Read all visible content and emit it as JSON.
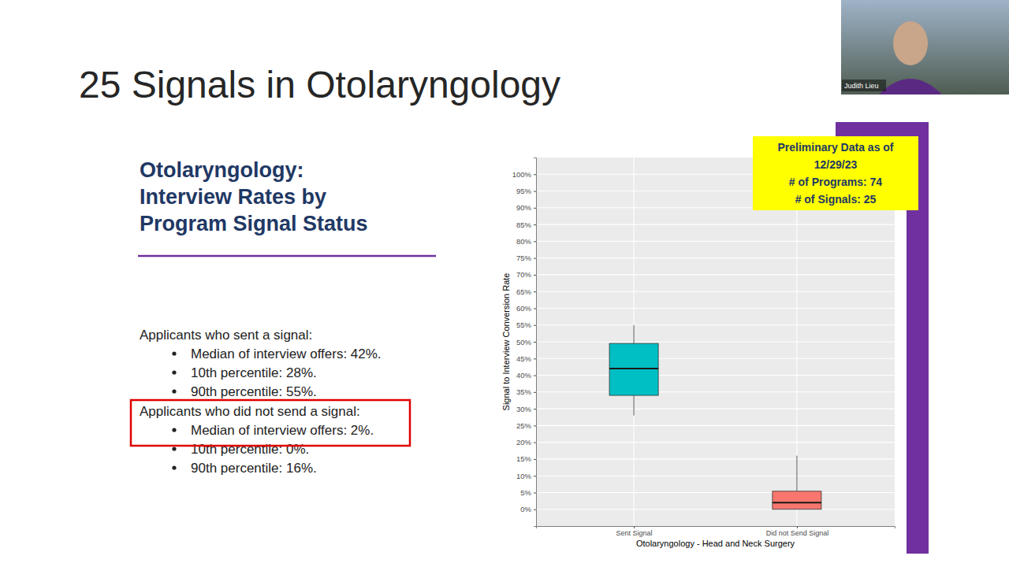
{
  "slide": {
    "title": "25 Signals in Otolaryngology",
    "heading": [
      "Otolaryngology:",
      "Interview Rates by",
      "Program Signal Status"
    ],
    "groups": [
      {
        "label": "Applicants who sent a signal:",
        "items": [
          "Median of interview offers: 42%.",
          "10th percentile: 28%.",
          "90th percentile: 55%."
        ]
      },
      {
        "label": "Applicants who did not send a signal:",
        "items": [
          "Median of interview offers: 2%.",
          "10th percentile: 0%.",
          "90th percentile: 16%."
        ]
      }
    ],
    "presenter": "Judith Lieu"
  },
  "chart_data": {
    "type": "box",
    "x_label": "Otolaryngology - Head and Neck Surgery",
    "y_label": "Signal to Interview Conversion Rate",
    "categories": [
      "Sent Signal",
      "Did not Send Signal"
    ],
    "low": [
      28,
      0
    ],
    "q1": [
      34,
      0
    ],
    "median": [
      42,
      2
    ],
    "q3": [
      49.5,
      5.4
    ],
    "high": [
      55,
      16
    ],
    "colors": [
      "#00bfc4",
      "#f8766d"
    ],
    "ylim": [
      -5,
      105
    ],
    "yticks": [
      {
        "value": 0,
        "label": "0%"
      },
      {
        "value": 5,
        "label": "5%"
      },
      {
        "value": 10,
        "label": "10%"
      },
      {
        "value": 15,
        "label": "15%"
      },
      {
        "value": 20,
        "label": "20%"
      },
      {
        "value": 25,
        "label": "25%"
      },
      {
        "value": 30,
        "label": "30%"
      },
      {
        "value": 35,
        "label": "35%"
      },
      {
        "value": 40,
        "label": "40%"
      },
      {
        "value": 45,
        "label": "45%"
      },
      {
        "value": 50,
        "label": "50%"
      },
      {
        "value": 55,
        "label": "55%"
      },
      {
        "value": 60,
        "label": "60%"
      },
      {
        "value": 65,
        "label": "65%"
      },
      {
        "value": 70,
        "label": "70%"
      },
      {
        "value": 75,
        "label": "75%"
      },
      {
        "value": 80,
        "label": "80%"
      },
      {
        "value": 85,
        "label": "85%"
      },
      {
        "value": 90,
        "label": "90%"
      },
      {
        "value": 95,
        "label": "95%"
      },
      {
        "value": 100,
        "label": "100%"
      }
    ],
    "grid": true,
    "annotations": [
      "Preliminary Data as of",
      "12/29/23",
      "# of Programs: 74",
      "# of Signals: 25"
    ]
  }
}
